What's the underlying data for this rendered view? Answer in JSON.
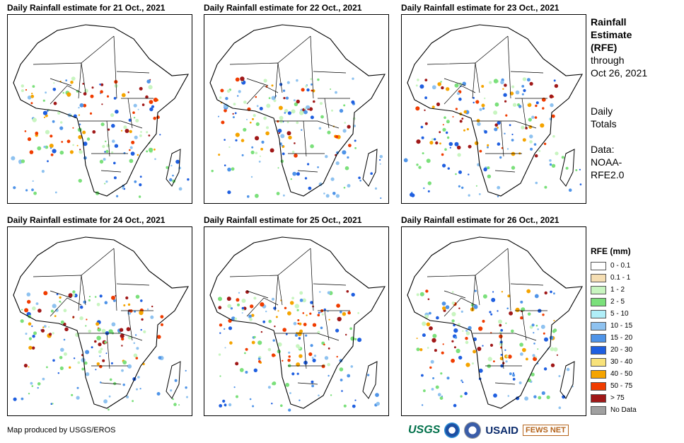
{
  "panels": [
    {
      "title": "Daily Rainfall estimate for 21 Oct., 2021"
    },
    {
      "title": "Daily Rainfall estimate for 22 Oct., 2021"
    },
    {
      "title": "Daily Rainfall estimate for 23 Oct., 2021"
    },
    {
      "title": "Daily Rainfall estimate for 24 Oct., 2021"
    },
    {
      "title": "Daily Rainfall estimate for 25 Oct., 2021"
    },
    {
      "title": "Daily Rainfall estimate for 26 Oct., 2021"
    }
  ],
  "side": {
    "title_lines": [
      "Rainfall",
      "Estimate",
      "(RFE)"
    ],
    "through": "through",
    "date": "Oct 26, 2021",
    "daily_lines": [
      "Daily",
      "Totals"
    ],
    "data_lines": [
      "Data:",
      "NOAA-",
      "RFE2.0"
    ]
  },
  "legend": {
    "title": "RFE (mm)",
    "items": [
      {
        "label": "0 - 0.1",
        "color": "#ffffff"
      },
      {
        "label": "0.1 - 1",
        "color": "#f5deb3"
      },
      {
        "label": "1 - 2",
        "color": "#c8f5c0"
      },
      {
        "label": "2 - 5",
        "color": "#7be07b"
      },
      {
        "label": "5 - 10",
        "color": "#b0eef8"
      },
      {
        "label": "10 - 15",
        "color": "#8ec2f0"
      },
      {
        "label": "15 - 20",
        "color": "#4f94e8"
      },
      {
        "label": "20 - 30",
        "color": "#1f5fe0"
      },
      {
        "label": "30 - 40",
        "color": "#f8e27a"
      },
      {
        "label": "40 - 50",
        "color": "#f5a400"
      },
      {
        "label": "50 - 75",
        "color": "#f03c00"
      },
      {
        "label": "> 75",
        "color": "#a01818"
      },
      {
        "label": "No Data",
        "color": "#a0a0a0"
      }
    ]
  },
  "credit": "Map produced by USGS/EROS",
  "logos": {
    "usgs": "USGS",
    "noaa": "noaa-emblem-icon",
    "dos": "usgs-seal-icon",
    "usaid": "USAID",
    "fews": "FEWS NET"
  }
}
